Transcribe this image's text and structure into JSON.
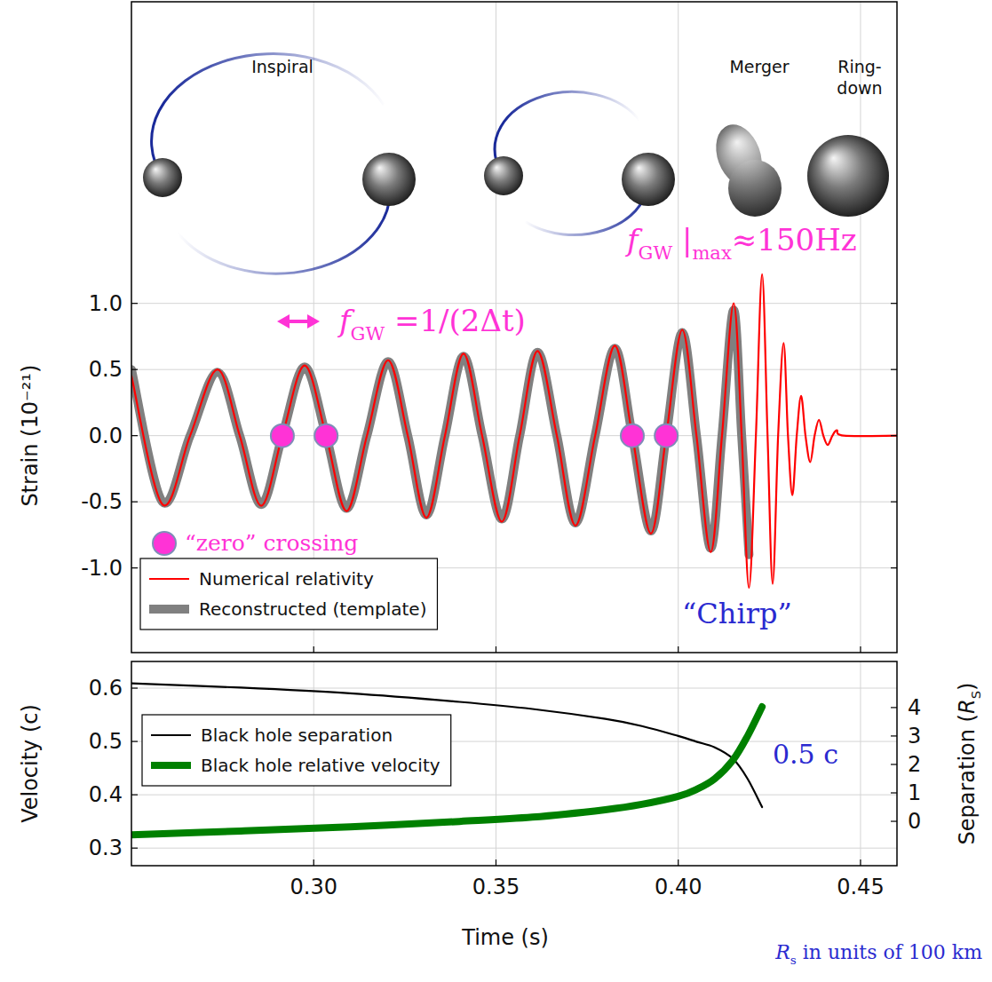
{
  "chart_data": [
    {
      "type": "line",
      "y_label": "Strain (10⁻²¹)",
      "xlim": [
        0.25,
        0.46
      ],
      "xticks": [
        0.3,
        0.35,
        0.4,
        0.45
      ],
      "ylim": [
        -1.64,
        3.28
      ],
      "yticks": [
        {
          "value": -1,
          "label": "-1.0"
        },
        {
          "value": -0.5,
          "label": "-0.5"
        },
        {
          "value": 0,
          "label": "0.0"
        },
        {
          "value": 0.5,
          "label": "0.5"
        },
        {
          "value": 1,
          "label": "1.0"
        }
      ],
      "grid": true,
      "tick_labels": "y",
      "legend": "lower left",
      "phases": [
        "Inspiral",
        "Merger",
        "Ring-down"
      ],
      "series": [
        {
          "name": "Numerical relativity",
          "color": "#ff0000",
          "x": [
            0.25,
            0.2585,
            0.2661,
            0.2736,
            0.2797,
            0.2856,
            0.2914,
            0.2975,
            0.3034,
            0.309,
            0.3146,
            0.3204,
            0.3258,
            0.3309,
            0.336,
            0.3411,
            0.3462,
            0.3516,
            0.3565,
            0.3614,
            0.3667,
            0.3718,
            0.3772,
            0.3826,
            0.3874,
            0.3925,
            0.3967,
            0.4011,
            0.405,
            0.4089,
            0.412,
            0.4152,
            0.4174,
            0.4194,
            0.4213,
            0.423,
            0.4245,
            0.4259,
            0.4274,
            0.4289,
            0.4301,
            0.4313,
            0.4325,
            0.4337,
            0.4349,
            0.4362,
            0.4374,
            0.4386,
            0.4398,
            0.441,
            0.4423,
            0.4435,
            0.4454,
            0.46
          ],
          "values": [
            0.45,
            -0.52,
            0,
            0.5,
            0,
            -0.53,
            0,
            0.53,
            0,
            -0.57,
            0,
            0.57,
            0,
            -0.62,
            0,
            0.62,
            0,
            -0.65,
            0,
            0.64,
            0,
            -0.68,
            0,
            0.68,
            0,
            -0.74,
            0,
            0.8,
            0,
            -0.88,
            0,
            1,
            0,
            -1.15,
            0,
            1.22,
            0,
            -1.12,
            0,
            0.7,
            0,
            -0.45,
            0,
            0.3,
            0,
            -0.2,
            0,
            0.12,
            0,
            -0.07,
            0,
            0.04,
            0,
            0
          ]
        },
        {
          "name": "Reconstructed (template)",
          "color": "#808080",
          "x": [
            0.25,
            0.2585,
            0.2661,
            0.2736,
            0.2797,
            0.2856,
            0.2914,
            0.2975,
            0.3034,
            0.309,
            0.3146,
            0.3204,
            0.3258,
            0.3309,
            0.336,
            0.3411,
            0.3462,
            0.3516,
            0.3565,
            0.3614,
            0.3667,
            0.3718,
            0.3772,
            0.3826,
            0.3874,
            0.3925,
            0.3967,
            0.4011,
            0.405,
            0.4089,
            0.412,
            0.4152,
            0.4174,
            0.4194
          ],
          "values": [
            0.5,
            -0.5,
            0,
            0.48,
            0,
            -0.52,
            0,
            0.52,
            0,
            -0.55,
            0,
            0.56,
            0,
            -0.6,
            0,
            0.6,
            0,
            -0.63,
            0,
            0.63,
            0,
            -0.66,
            0,
            0.66,
            0,
            -0.72,
            0,
            0.78,
            0,
            -0.85,
            0,
            0.95,
            0,
            -0.9
          ]
        }
      ],
      "zero_crossings": {
        "label": "“zero” crossing",
        "x": [
          0.2914,
          0.3034,
          0.3874,
          0.3967
        ]
      },
      "annotations": {
        "frequency": [
          {
            "text": "f"
          },
          {
            "sub": "GW"
          },
          {
            "text": " =1/(2Δt)"
          }
        ],
        "max_frequency": [
          {
            "text": "f"
          },
          {
            "sub": "GW"
          },
          {
            "text": " |"
          },
          {
            "sub": "max"
          },
          {
            "text": "≈150Hz"
          }
        ],
        "chirp": "“Chirp”"
      }
    },
    {
      "type": "line",
      "x_label": "Time (s)",
      "y_label": "Velocity (c)",
      "y2_label": [
        {
          "text": "Separation ("
        },
        {
          "text": "R"
        },
        {
          "sub": "S"
        },
        {
          "text": ")"
        }
      ],
      "xlim": [
        0.25,
        0.46
      ],
      "xticks": [
        {
          "value": 0.3,
          "label": "0.30"
        },
        {
          "value": 0.35,
          "label": "0.35"
        },
        {
          "value": 0.4,
          "label": "0.40"
        },
        {
          "value": 0.45,
          "label": "0.45"
        }
      ],
      "ylim": [
        0.267,
        0.65
      ],
      "yticks": [
        0.3,
        0.4,
        0.5,
        0.6
      ],
      "y2lim": [
        -1.56,
        5.62
      ],
      "y2ticks": [
        0,
        1,
        2,
        3,
        4
      ],
      "grid": true,
      "legend": "upper left",
      "series": [
        {
          "name": "Black hole separation",
          "color": "#000000",
          "axis": "y2",
          "x": [
            0.25,
            0.28,
            0.31,
            0.34,
            0.36,
            0.38,
            0.39,
            0.4,
            0.405,
            0.41,
            0.415,
            0.419,
            0.423
          ],
          "values": [
            4.85,
            4.7,
            4.5,
            4.2,
            3.95,
            3.6,
            3.35,
            3,
            2.8,
            2.6,
            2.2,
            1.5,
            0.5
          ]
        },
        {
          "name": "Black hole relative velocity",
          "color": "#008000",
          "x": [
            0.25,
            0.28,
            0.31,
            0.34,
            0.36,
            0.38,
            0.39,
            0.4,
            0.405,
            0.41,
            0.415,
            0.419,
            0.423
          ],
          "values": [
            0.325,
            0.332,
            0.34,
            0.35,
            0.358,
            0.372,
            0.382,
            0.397,
            0.41,
            0.43,
            0.465,
            0.51,
            0.565
          ]
        }
      ],
      "annotations": {
        "velocity": "0.5 c",
        "units": [
          {
            "text": "R"
          },
          {
            "sub": "s"
          },
          {
            "text": " in units of 100 km"
          }
        ]
      }
    }
  ]
}
